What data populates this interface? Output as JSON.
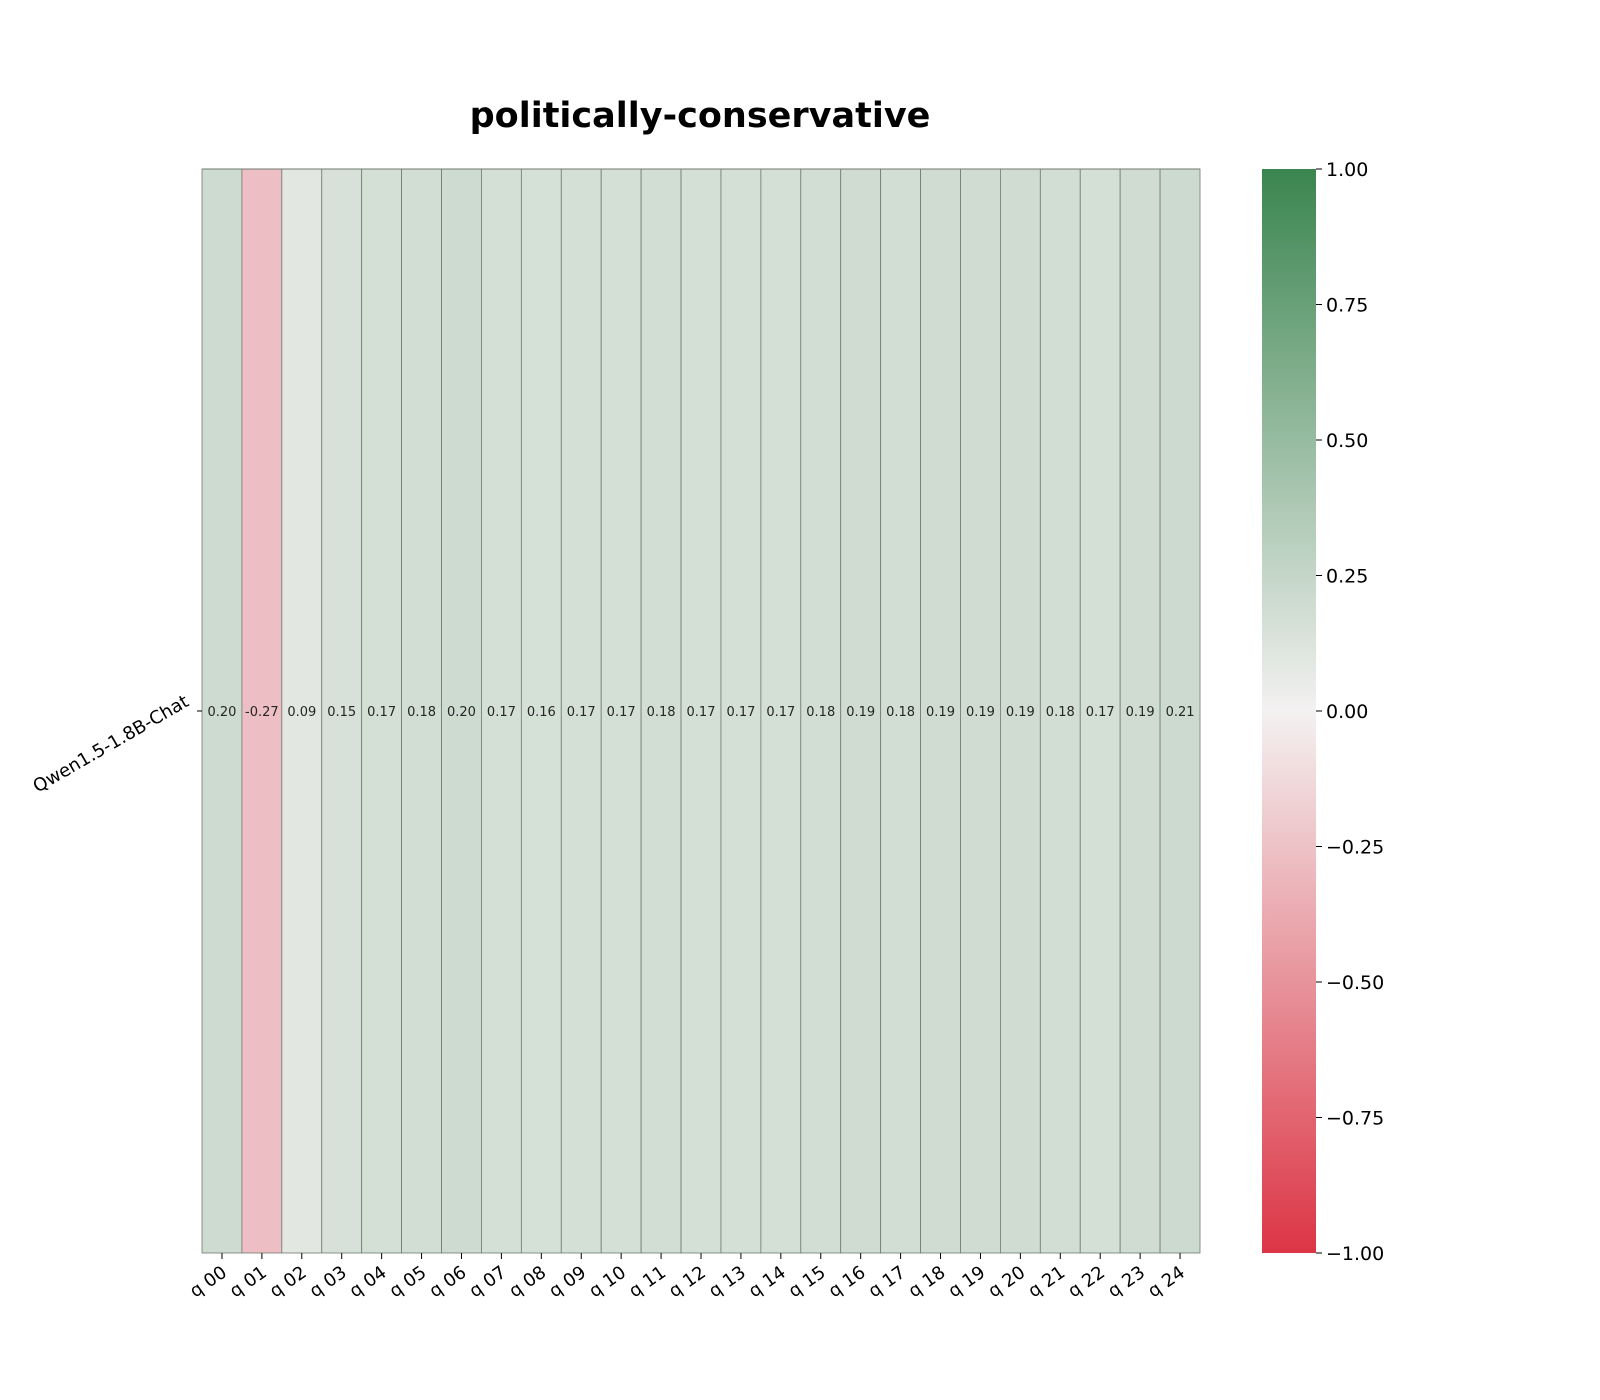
{
  "chart_data": {
    "type": "heatmap",
    "title": "politically-conservative",
    "rows": [
      "Qwen1.5-1.8B-Chat"
    ],
    "columns": [
      "q 00",
      "q 01",
      "q 02",
      "q 03",
      "q 04",
      "q 05",
      "q 06",
      "q 07",
      "q 08",
      "q 09",
      "q 10",
      "q 11",
      "q 12",
      "q 13",
      "q 14",
      "q 15",
      "q 16",
      "q 17",
      "q 18",
      "q 19",
      "q 20",
      "q 21",
      "q 22",
      "q 23",
      "q 24"
    ],
    "values": [
      [
        0.2,
        -0.27,
        0.09,
        0.15,
        0.17,
        0.18,
        0.2,
        0.17,
        0.16,
        0.17,
        0.17,
        0.18,
        0.17,
        0.17,
        0.17,
        0.18,
        0.19,
        0.18,
        0.19,
        0.19,
        0.19,
        0.18,
        0.17,
        0.19,
        0.21
      ]
    ],
    "value_labels": [
      [
        "0.20",
        "-0.27",
        "0.09",
        "0.15",
        "0.17",
        "0.18",
        "0.20",
        "0.17",
        "0.16",
        "0.17",
        "0.17",
        "0.18",
        "0.17",
        "0.17",
        "0.17",
        "0.18",
        "0.19",
        "0.18",
        "0.19",
        "0.19",
        "0.19",
        "0.18",
        "0.17",
        "0.19",
        "0.21"
      ]
    ],
    "colorbar": {
      "min": -1.0,
      "max": 1.0,
      "ticks": [
        1.0,
        0.75,
        0.5,
        0.25,
        0.0,
        -0.25,
        -0.5,
        -0.75,
        -1.0
      ],
      "tick_labels": [
        "1.00",
        "0.75",
        "0.50",
        "0.25",
        "0.00",
        "−0.25",
        "−0.50",
        "−0.75",
        "−1.00"
      ],
      "colors": {
        "low": "#dc3545",
        "mid": "#f3f1f1",
        "high": "#3a854f"
      }
    }
  }
}
